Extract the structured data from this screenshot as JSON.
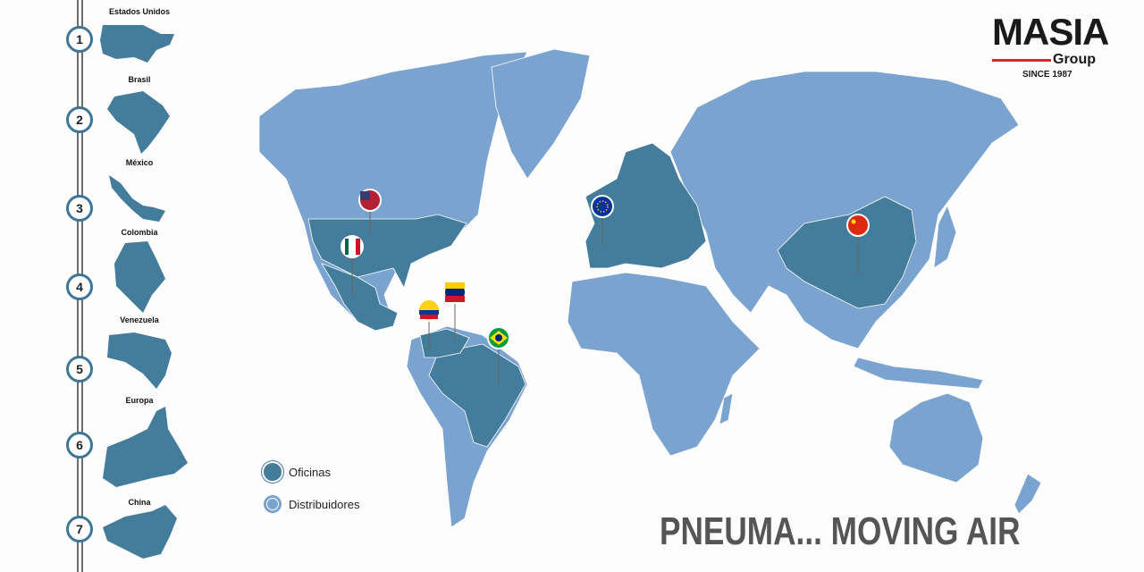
{
  "brand": {
    "name": "MASIA",
    "sub": "Group",
    "since": "SINCE 1987",
    "accent": "#d52b1e"
  },
  "timeline": [
    {
      "num": "1",
      "label": "Estados Unidos"
    },
    {
      "num": "2",
      "label": "Brasil"
    },
    {
      "num": "3",
      "label": "México"
    },
    {
      "num": "4",
      "label": "Colombia"
    },
    {
      "num": "5",
      "label": "Venezuela"
    },
    {
      "num": "6",
      "label": "Europa"
    },
    {
      "num": "7",
      "label": "China"
    }
  ],
  "legend": {
    "offices": "Oficinas",
    "distributors": "Distribuidores"
  },
  "colors": {
    "offices": "#447c9b",
    "distributors": "#7aa3cf"
  },
  "pins": [
    "usa-flag",
    "mexico-flag",
    "colombia-flag",
    "venezuela-flag",
    "brazil-flag",
    "eu-flag",
    "china-flag"
  ],
  "slogan": "PNEUMA... MOVING AIR"
}
